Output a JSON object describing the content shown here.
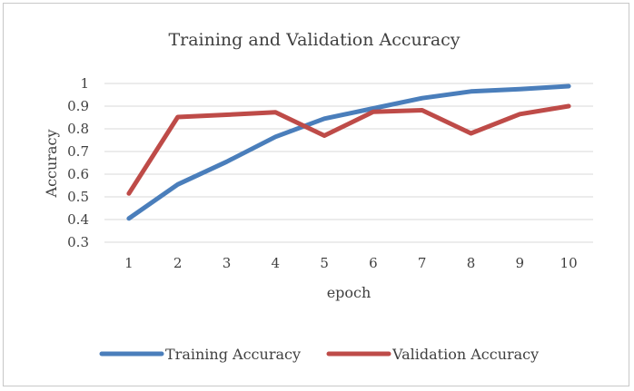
{
  "chart_data": {
    "type": "line",
    "title": "Training and Validation Accuracy",
    "xlabel": "epoch",
    "ylabel": "Accuracy",
    "categories": [
      "1",
      "2",
      "3",
      "4",
      "5",
      "6",
      "7",
      "8",
      "9",
      "10"
    ],
    "ylim": [
      0.3,
      1
    ],
    "yticks": [
      "0.3",
      "0.4",
      "0.5",
      "0.6",
      "0.7",
      "0.8",
      "0.9",
      "1"
    ],
    "grid": true,
    "legend_position": "bottom",
    "series": [
      {
        "name": "Training Accuracy",
        "color": "#4a7ebb",
        "values": [
          0.405,
          0.555,
          0.655,
          0.765,
          0.845,
          0.89,
          0.935,
          0.965,
          0.975,
          0.988
        ]
      },
      {
        "name": "Validation Accuracy",
        "color": "#be4b48",
        "values": [
          0.515,
          0.852,
          0.862,
          0.873,
          0.77,
          0.875,
          0.882,
          0.78,
          0.865,
          0.9
        ]
      }
    ]
  }
}
